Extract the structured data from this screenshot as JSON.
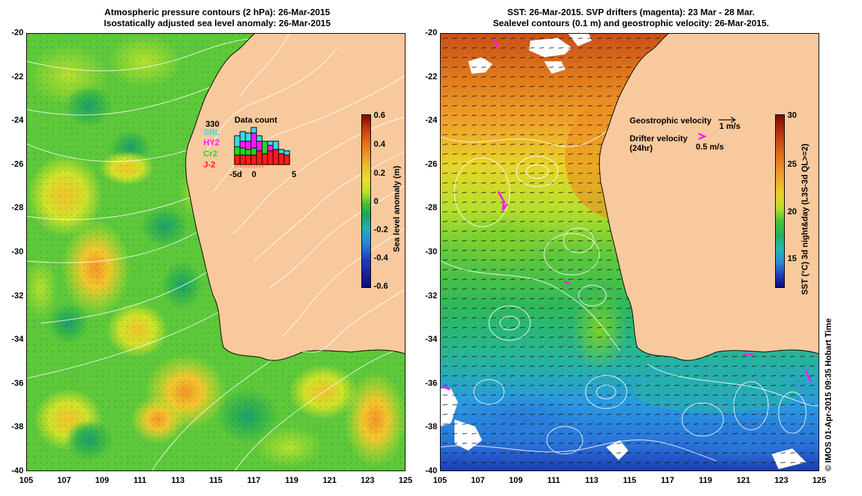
{
  "left_panel": {
    "title_line1": "Atmospheric pressure contours (2 hPa): 26-Mar-2015",
    "title_line2": "Isostatically adjusted sea level anomaly: 26-Mar-2015",
    "colorbar": {
      "label": "Sea level anomaly (m)",
      "ticks": [
        "0.6",
        "0.4",
        "0.2",
        "0",
        "-0.2",
        "-0.4",
        "-0.6"
      ]
    },
    "data_count": {
      "title": "Data count",
      "max_label": "330",
      "satellites": [
        {
          "name": "SRL",
          "color": "#3fd6e6"
        },
        {
          "name": "HY2",
          "color": "#ff1aff"
        },
        {
          "name": "Cr2",
          "color": "#22d822"
        },
        {
          "name": "J-2",
          "color": "#ff1a1a"
        }
      ],
      "x_ticks": [
        "-5d",
        "0",
        "5"
      ]
    }
  },
  "right_panel": {
    "title_line1": "SST: 26-Mar-2015. SVP drifters (magenta): 23 Mar - 28 Mar.",
    "title_line2": "Sealevel contours (0.1 m) and geostrophic velocity: 26-Mar-2015.",
    "legend": {
      "geostrophic_label": "Geostrophic velocity",
      "geostrophic_scale": "1 m/s",
      "drifter_label_line1": "Drifter velocity",
      "drifter_label_line2": "(24hr)",
      "drifter_scale": "0.5 m/s"
    },
    "colorbar": {
      "label": "SST (°C) 3d night&day (L3S-3d QL>=2)",
      "ticks": [
        "30",
        "25",
        "20",
        "15"
      ]
    }
  },
  "axes": {
    "y_ticks": [
      "-20",
      "-22",
      "-24",
      "-26",
      "-28",
      "-30",
      "-32",
      "-34",
      "-36",
      "-38",
      "-40"
    ],
    "x_ticks": [
      "105",
      "107",
      "109",
      "111",
      "113",
      "115",
      "117",
      "119",
      "121",
      "123",
      "125"
    ]
  },
  "credit": "© IMOS 01-Apr-2015 09:35 Hobart Time",
  "colors": {
    "land": "#f8c99c",
    "sla_ocean": "#5cc83a",
    "sst_warm": "#e07a1c",
    "sst_mid": "#7ad02a",
    "sst_cool": "#2aa0e0",
    "drifter": "#ff1aff"
  }
}
